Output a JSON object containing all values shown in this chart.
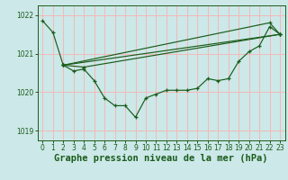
{
  "bg_color": "#cce8e8",
  "grid_color": "#f5b8b8",
  "line_color": "#1a5c1a",
  "xlabel": "Graphe pression niveau de la mer (hPa)",
  "ylim": [
    1018.75,
    1022.25
  ],
  "xlim": [
    -0.5,
    23.5
  ],
  "yticks": [
    1019,
    1020,
    1021,
    1022
  ],
  "xticks": [
    0,
    1,
    2,
    3,
    4,
    5,
    6,
    7,
    8,
    9,
    10,
    11,
    12,
    13,
    14,
    15,
    16,
    17,
    18,
    19,
    20,
    21,
    22,
    23
  ],
  "tick_fontsize": 5.5,
  "xlabel_fontsize": 7.5,
  "line1_x": [
    0,
    1,
    2,
    3,
    4,
    5,
    6,
    7,
    8,
    9,
    10,
    11,
    12,
    13,
    14,
    15,
    16,
    17,
    18,
    19,
    20,
    21,
    22,
    23
  ],
  "line1_y": [
    1021.85,
    1021.55,
    1020.7,
    1020.55,
    1020.6,
    1020.3,
    1019.85,
    1019.65,
    1019.65,
    1019.35,
    1019.85,
    1019.95,
    1020.05,
    1020.05,
    1020.05,
    1020.1,
    1020.35,
    1020.3,
    1020.35,
    1020.8,
    1021.05,
    1021.2,
    1021.7,
    1021.5
  ],
  "line2_x": [
    2,
    23
  ],
  "line2_y": [
    1020.7,
    1021.5
  ],
  "line3_x": [
    2,
    22,
    23
  ],
  "line3_y": [
    1020.7,
    1021.8,
    1021.5
  ],
  "line4_x": [
    2,
    4,
    23
  ],
  "line4_y": [
    1020.7,
    1020.65,
    1021.5
  ]
}
